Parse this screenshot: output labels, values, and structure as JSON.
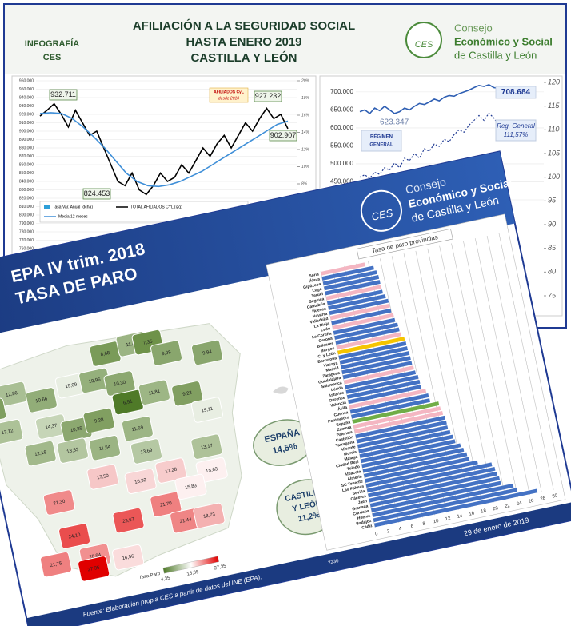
{
  "back": {
    "label": [
      "INFOGRAFÍA",
      "CES"
    ],
    "title": [
      "AFILIACIÓN A LA SEGURIDAD SOCIAL",
      "HASTA ENERO 2019",
      "CASTILLA Y LEÓN"
    ],
    "logo_text": "CES",
    "council": [
      "Consejo",
      "Económico y Social",
      "de Castilla y León"
    ],
    "left_chart": {
      "type": "line",
      "ylim": [
        760000,
        960000
      ],
      "yticks": [
        {
          "value": 960000,
          "label": "960.000"
        },
        {
          "value": 950000,
          "label": "950.000"
        },
        {
          "value": 940000,
          "label": "940.000"
        },
        {
          "value": 930000,
          "label": "930.000"
        },
        {
          "value": 920000,
          "label": "920.000"
        },
        {
          "value": 910000,
          "label": "910.000"
        },
        {
          "value": 900000,
          "label": "900.000"
        },
        {
          "value": 890000,
          "label": "890.000"
        },
        {
          "value": 880000,
          "label": "880.000"
        },
        {
          "value": 870000,
          "label": "870.000"
        },
        {
          "value": 860000,
          "label": "860.000"
        },
        {
          "value": 850000,
          "label": "850.000"
        },
        {
          "value": 840000,
          "label": "840.000"
        },
        {
          "value": 830000,
          "label": "830.000"
        },
        {
          "value": 820000,
          "label": "820.000"
        },
        {
          "value": 810000,
          "label": "810.000"
        },
        {
          "value": 800000,
          "label": "800.000"
        },
        {
          "value": 790000,
          "label": "790.000"
        },
        {
          "value": 780000,
          "label": "780.000"
        },
        {
          "value": 770000,
          "label": "770.000"
        },
        {
          "value": 760000,
          "label": "760.000"
        }
      ],
      "y2lim": [
        0,
        20
      ],
      "y2ticks": [
        {
          "value": 20,
          "label": "20%"
        },
        {
          "value": 18,
          "label": "18%"
        },
        {
          "value": 16,
          "label": "16%"
        },
        {
          "value": 14,
          "label": "14%"
        },
        {
          "value": 12,
          "label": "12%"
        },
        {
          "value": 10,
          "label": "10%"
        },
        {
          "value": 8,
          "label": "8%"
        }
      ],
      "series": [
        {
          "name": "TOTAL AFILIADOS CYL (izq)",
          "color": "#000000",
          "values": [
            918000,
            925000,
            932711,
            920000,
            905000,
            925000,
            910000,
            895000,
            900000,
            880000,
            860000,
            840000,
            835000,
            850000,
            830000,
            824453,
            835000,
            850000,
            840000,
            845000,
            860000,
            850000,
            865000,
            880000,
            870000,
            885000,
            895000,
            880000,
            895000,
            910000,
            900000,
            915000,
            927232,
            915000,
            920000,
            902907
          ]
        },
        {
          "name": "Media 12 meses",
          "color": "#3f8fd8",
          "values": [
            921000,
            922000,
            921000,
            915000,
            905000,
            893000,
            880000,
            865000,
            850000,
            840000,
            835000,
            834000,
            836000,
            840000,
            846000,
            852000,
            860000,
            868000,
            876000,
            884000,
            892000,
            900000,
            908000,
            912000
          ]
        }
      ],
      "bar_legend": {
        "name": "Tasa Var. Anual (dcha)",
        "color": "#2e9fd8"
      },
      "annotations": [
        "932.711",
        "927.232",
        "902.907",
        "824.453"
      ],
      "note": [
        "AFILIADOS CyL",
        "desde 2010"
      ]
    },
    "right_chart": {
      "type": "line",
      "ylim": [
        400000,
        733000
      ],
      "yticks": [
        {
          "value": 700000,
          "label": "700.000"
        },
        {
          "value": 650000,
          "label": "650.000"
        },
        {
          "value": 600000,
          "label": "600.000"
        },
        {
          "value": 550000,
          "label": "550.000"
        },
        {
          "value": 500000,
          "label": "500.000"
        },
        {
          "value": 450000,
          "label": "450.000"
        },
        {
          "value": 400000,
          "label": "400.000"
        }
      ],
      "y2lim": [
        75,
        120
      ],
      "y2ticks": [
        120,
        115,
        110,
        105,
        100,
        95,
        90,
        85,
        80,
        75
      ],
      "series": [
        {
          "color": "#2f5fb3",
          "values": [
            645000,
            650000,
            640000,
            655000,
            648000,
            660000,
            650000,
            640000,
            645000,
            655000,
            650000,
            660000,
            668000,
            665000,
            672000,
            680000,
            675000,
            685000,
            690000,
            688000,
            695000,
            700000,
            705000,
            712000,
            718000,
            715000,
            720000,
            712000,
            710000,
            708684
          ]
        },
        {
          "color": "#1f3a93",
          "axis": "y2",
          "dashed": true,
          "values": [
            100,
            100.5,
            99.8,
            101,
            100.6,
            102,
            101.5,
            103,
            102,
            104,
            103.5,
            105,
            104,
            106,
            105.5,
            107,
            106.5,
            108,
            107.5,
            109,
            110,
            109.5,
            111,
            112,
            113,
            112,
            113.5,
            112.5,
            111,
            111.57
          ]
        }
      ],
      "annotations": [
        "708.684",
        "623.347"
      ],
      "regime": [
        "RÉGIMEN",
        "GENERAL"
      ],
      "reg_label": [
        "Reg. General",
        "111,57%"
      ]
    }
  },
  "front": {
    "title": [
      "EPA IV trim. 2018",
      "TASA DE PARO"
    ],
    "logo_text": "CES",
    "council": [
      "Consejo",
      "Económico y Social",
      "de Castilla y León"
    ],
    "map": {
      "regions": [
        {
          "label": "12,86",
          "color": "#a9bf94"
        },
        {
          "label": "9,16",
          "color": "#7f9f5f"
        },
        {
          "label": "10,66",
          "color": "#92ad78"
        },
        {
          "label": "15,09",
          "color": "#e8eee2"
        },
        {
          "label": "10,96",
          "color": "#95b07c"
        },
        {
          "label": "8,68",
          "color": "#7a9b59"
        },
        {
          "label": "11,47",
          "color": "#9bb483"
        },
        {
          "label": "7,35",
          "color": "#6e9249"
        },
        {
          "label": "9,98",
          "color": "#89a66d"
        },
        {
          "label": "9,94",
          "color": "#89a66d"
        },
        {
          "label": "13,12",
          "color": "#adc298"
        },
        {
          "label": "14,37",
          "color": "#c6d5b7"
        },
        {
          "label": "10,25",
          "color": "#8ca870"
        },
        {
          "label": "9,28",
          "color": "#819f61"
        },
        {
          "label": "10,30",
          "color": "#8ca870"
        },
        {
          "label": "6,51",
          "color": "#4f7a28"
        },
        {
          "label": "11,81",
          "color": "#9db685"
        },
        {
          "label": "11,69",
          "color": "#9cb584"
        },
        {
          "label": "9,23",
          "color": "#819f61"
        },
        {
          "label": "12,18",
          "color": "#a2b98b"
        },
        {
          "label": "13,53",
          "color": "#b3c6a0"
        },
        {
          "label": "11,54",
          "color": "#9bb483"
        },
        {
          "label": "13,69",
          "color": "#b5c8a3"
        },
        {
          "label": "15,11",
          "color": "#e8eee2"
        },
        {
          "label": "13,17",
          "color": "#aec299"
        },
        {
          "label": "17,50",
          "color": "#f6c7c7"
        },
        {
          "label": "16,92",
          "color": "#f8d6d6"
        },
        {
          "label": "17,28",
          "color": "#f7cccc"
        },
        {
          "label": "15,63",
          "color": "#fdf0f0"
        },
        {
          "label": "21,30",
          "color": "#f08a8a"
        },
        {
          "label": "24,10",
          "color": "#ea4d4d"
        },
        {
          "label": "23,67",
          "color": "#eb5757"
        },
        {
          "label": "21,70",
          "color": "#ef8080"
        },
        {
          "label": "21,44",
          "color": "#ef8585"
        },
        {
          "label": "18,73",
          "color": "#f4b1b1"
        },
        {
          "label": "15,83",
          "color": "#fdf0f0"
        },
        {
          "label": "21,75",
          "color": "#ef8080"
        },
        {
          "label": "20,94",
          "color": "#f19090"
        },
        {
          "label": "16,56",
          "color": "#fadcdc"
        },
        {
          "label": "27,35",
          "color": "#e00000"
        }
      ],
      "legend": {
        "title": "Tasa Paro",
        "labels": [
          "4,35",
          "15,85",
          "27,35"
        ],
        "colors": [
          "#4f7a28",
          "#ffffff",
          "#e00000"
        ]
      }
    },
    "spain": [
      "ESPAÑA",
      "14,5%"
    ],
    "cyl": [
      "CASTILLA",
      "Y LEÓN",
      "11,2%"
    ],
    "bar_chart": {
      "type": "bar",
      "title": "Tasa de paro provincias",
      "categories": [
        "Soria",
        "Álava",
        "Gipúzcoa",
        "Lugo",
        "Teruel",
        "Segovia",
        "Cantabria",
        "Huesca",
        "Navarra",
        "Valladolid",
        "La Rioja",
        "León",
        "La Coruña",
        "Gerona",
        "Baleares",
        "Burgos",
        "C. y León",
        "Barcelona",
        "Vizcaya",
        "Madrid",
        "Zaragoza",
        "Guadalajara",
        "Salamanca",
        "Lérida",
        "Asturias",
        "Ourense",
        "Valencia",
        "Ávila",
        "Cuenca",
        "Pontevedra",
        "España",
        "Zamora",
        "Palencia",
        "Castellón",
        "Tarragona",
        "Alicante",
        "Murcia",
        "Málaga",
        "Ciudad Real",
        "Toledo",
        "Albacete",
        "Almería",
        "SC Tenerife",
        "Las Palmas",
        "Sevilla",
        "Cáceres",
        "Jaén",
        "Granada",
        "Córdoba",
        "Huelva",
        "Badajoz",
        "Cádiz"
      ],
      "values": [
        7.35,
        8.68,
        9.0,
        9.16,
        9.2,
        9.23,
        9.28,
        9.6,
        9.9,
        9.94,
        9.98,
        10.25,
        10.3,
        10.6,
        10.66,
        10.8,
        11.2,
        11.3,
        11.34,
        11.47,
        11.5,
        11.54,
        11.69,
        11.81,
        12.1,
        12.18,
        12.21,
        12.86,
        13.12,
        13.17,
        14.5,
        14.6,
        14.8,
        15.0,
        15.09,
        15.11,
        15.36,
        15.63,
        15.83,
        16.56,
        16.92,
        17.28,
        17.5,
        18.73,
        20.94,
        21.3,
        21.44,
        21.7,
        21.75,
        23.67,
        24.1,
        27.35
      ],
      "colors": [
        "#f4b6c2",
        "#4472c4",
        "#4472c4",
        "#4472c4",
        "#4472c4",
        "#f4b6c2",
        "#4472c4",
        "#4472c4",
        "#4472c4",
        "#f4b6c2",
        "#4472c4",
        "#f4b6c2",
        "#4472c4",
        "#4472c4",
        "#4472c4",
        "#f4b6c2",
        "#f5c400",
        "#4472c4",
        "#4472c4",
        "#4472c4",
        "#4472c4",
        "#4472c4",
        "#f4b6c2",
        "#4472c4",
        "#4472c4",
        "#4472c4",
        "#4472c4",
        "#f4b6c2",
        "#4472c4",
        "#4472c4",
        "#70ad47",
        "#f4b6c2",
        "#f4b6c2",
        "#4472c4",
        "#4472c4",
        "#4472c4",
        "#4472c4",
        "#4472c4",
        "#4472c4",
        "#4472c4",
        "#4472c4",
        "#4472c4",
        "#4472c4",
        "#4472c4",
        "#4472c4",
        "#4472c4",
        "#4472c4",
        "#4472c4",
        "#4472c4",
        "#4472c4",
        "#4472c4",
        "#4472c4"
      ],
      "xlim": [
        0,
        30
      ],
      "xticks": [
        0,
        2,
        4,
        6,
        8,
        10,
        12,
        14,
        16,
        18,
        20,
        22,
        24,
        26,
        28,
        30
      ],
      "grid": true
    },
    "page_number": "2230",
    "date": "29 de enero de 2019",
    "source": "Fuente: Elaboración propia CES a partir de datos del INE (EPA)."
  }
}
